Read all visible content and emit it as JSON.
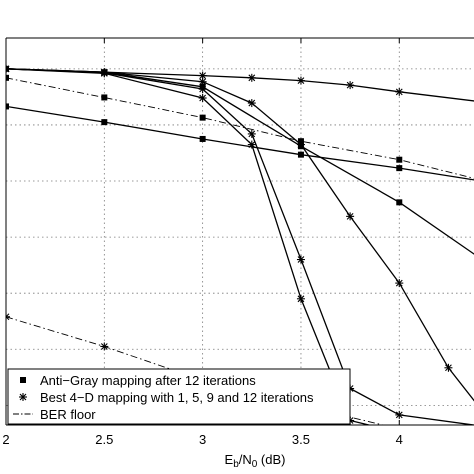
{
  "chart_data": {
    "type": "line",
    "xlabel": {
      "main": "E",
      "sub1": "b",
      "mid": "/N",
      "sub2": "0",
      "unit": " (dB)"
    },
    "ylabel": "",
    "title": "",
    "xlim": [
      2,
      4.38
    ],
    "ylim_log10": [
      -6.35,
      0.55
    ],
    "y_scale": "log",
    "grid": true,
    "x_ticks": [
      2,
      2.5,
      3,
      3.5,
      4
    ],
    "x_tick_labels": [
      "2",
      "2.5",
      "3",
      "3.5",
      "4"
    ],
    "y_grid_log10": [
      0,
      -1,
      -2,
      -3,
      -4,
      -5,
      -6
    ],
    "legend": {
      "placement": "bottom-left",
      "entries": [
        {
          "label": "Anti−Gray mapping after 12 iterations",
          "marker": "square",
          "line": "solid"
        },
        {
          "label": "Best 4−D mapping with 1, 5, 9 and 12 iterations",
          "marker": "star",
          "line": "solid"
        },
        {
          "label": "BER floor",
          "marker": "none",
          "line": "dashdot"
        }
      ]
    },
    "series": [
      {
        "marker": "square",
        "line": "solid",
        "x": [
          2,
          2.5,
          3,
          3.5,
          4,
          4.4
        ],
        "log10_y": [
          0,
          -0.06,
          -0.32,
          -1.38,
          -2.38,
          -3.35
        ]
      },
      {
        "marker": "square",
        "line": "solid",
        "x": [
          2,
          2.5,
          3,
          3.5,
          4,
          4.4
        ],
        "log10_y": [
          -0.67,
          -0.95,
          -1.25,
          -1.53,
          -1.77,
          -1.99
        ]
      },
      {
        "marker": "star",
        "line": "solid",
        "x": [
          2,
          2.5,
          3,
          3.25,
          3.5,
          3.75,
          4,
          4.4
        ],
        "log10_y": [
          0,
          -0.06,
          -0.12,
          -0.16,
          -0.21,
          -0.29,
          -0.41,
          -0.58
        ]
      },
      {
        "marker": "star",
        "line": "solid",
        "x": [
          2,
          2.5,
          3,
          3.25,
          3.5,
          3.75,
          4,
          4.25,
          4.4
        ],
        "log10_y": [
          0,
          -0.06,
          -0.23,
          -0.61,
          -1.35,
          -2.63,
          -3.82,
          -5.33,
          -6.0
        ]
      },
      {
        "marker": "star",
        "line": "solid",
        "x": [
          2,
          2.5,
          3,
          3.25,
          3.5,
          3.75,
          4,
          4.4
        ],
        "log10_y": [
          0,
          -0.07,
          -0.36,
          -1.16,
          -3.4,
          -5.7,
          -6.17,
          -6.36
        ]
      },
      {
        "marker": "star",
        "line": "solid",
        "x": [
          2,
          2.5,
          3,
          3.25,
          3.5,
          3.75,
          4,
          4.4
        ],
        "log10_y": [
          0,
          -0.08,
          -0.52,
          -1.35,
          -4.1,
          -6.27,
          -6.48,
          -6.68
        ]
      },
      {
        "marker": "square",
        "line": "dashdot",
        "x": [
          2,
          2.5,
          3,
          3.5,
          4,
          4.4
        ],
        "log10_y": [
          -0.16,
          -0.51,
          -0.87,
          -1.29,
          -1.62,
          -1.97
        ]
      },
      {
        "marker": "star",
        "line": "dashdot",
        "x": [
          2,
          2.5,
          3,
          3.5,
          4,
          4.4
        ],
        "log10_y": [
          -4.42,
          -4.95,
          -5.55,
          -6.0,
          -6.42,
          -6.7
        ]
      }
    ]
  }
}
